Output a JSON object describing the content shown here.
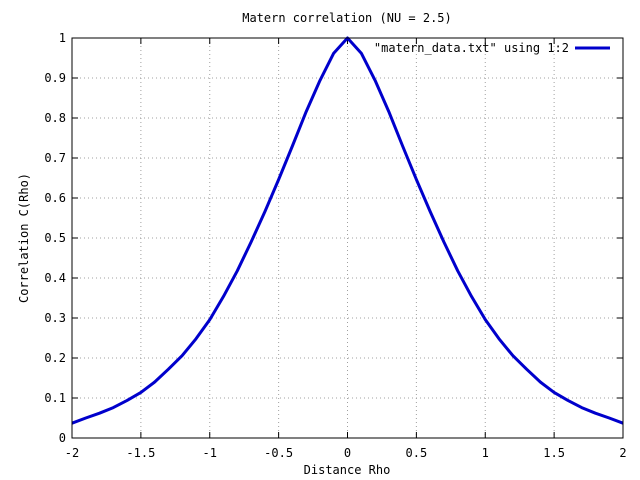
{
  "chart_data": {
    "type": "line",
    "title": "Matern correlation (NU = 2.5)",
    "xlabel": "Distance Rho",
    "ylabel": "Correlation C(Rho)",
    "xlim": [
      -2,
      2
    ],
    "ylim": [
      0,
      1
    ],
    "x_ticks": [
      "-2",
      "-1.5",
      "-1",
      "-0.5",
      "0",
      "0.5",
      "1",
      "1.5",
      "2"
    ],
    "y_ticks": [
      "0",
      "0.1",
      "0.2",
      "0.3",
      "0.4",
      "0.5",
      "0.6",
      "0.7",
      "0.8",
      "0.9",
      "1"
    ],
    "grid": true,
    "legend_position": "top-right",
    "series": [
      {
        "name": "\"matern_data.txt\" using 1:2",
        "color": "#0000cc",
        "x": [
          -2.0,
          -1.9,
          -1.8,
          -1.7,
          -1.6,
          -1.5,
          -1.4,
          -1.3,
          -1.2,
          -1.1,
          -1.0,
          -0.9,
          -0.8,
          -0.7,
          -0.6,
          -0.5,
          -0.4,
          -0.3,
          -0.2,
          -0.1,
          0.0,
          0.1,
          0.2,
          0.3,
          0.4,
          0.5,
          0.6,
          0.7,
          0.8,
          0.9,
          1.0,
          1.1,
          1.2,
          1.3,
          1.4,
          1.5,
          1.6,
          1.7,
          1.8,
          1.9,
          2.0
        ],
        "y": [
          0.037,
          0.05,
          0.062,
          0.076,
          0.094,
          0.114,
          0.14,
          0.172,
          0.206,
          0.248,
          0.296,
          0.354,
          0.418,
          0.49,
          0.566,
          0.646,
          0.73,
          0.816,
          0.894,
          0.962,
          1.0,
          0.962,
          0.894,
          0.816,
          0.73,
          0.646,
          0.566,
          0.49,
          0.418,
          0.354,
          0.296,
          0.248,
          0.206,
          0.172,
          0.14,
          0.114,
          0.094,
          0.076,
          0.062,
          0.05,
          0.037
        ]
      }
    ]
  }
}
